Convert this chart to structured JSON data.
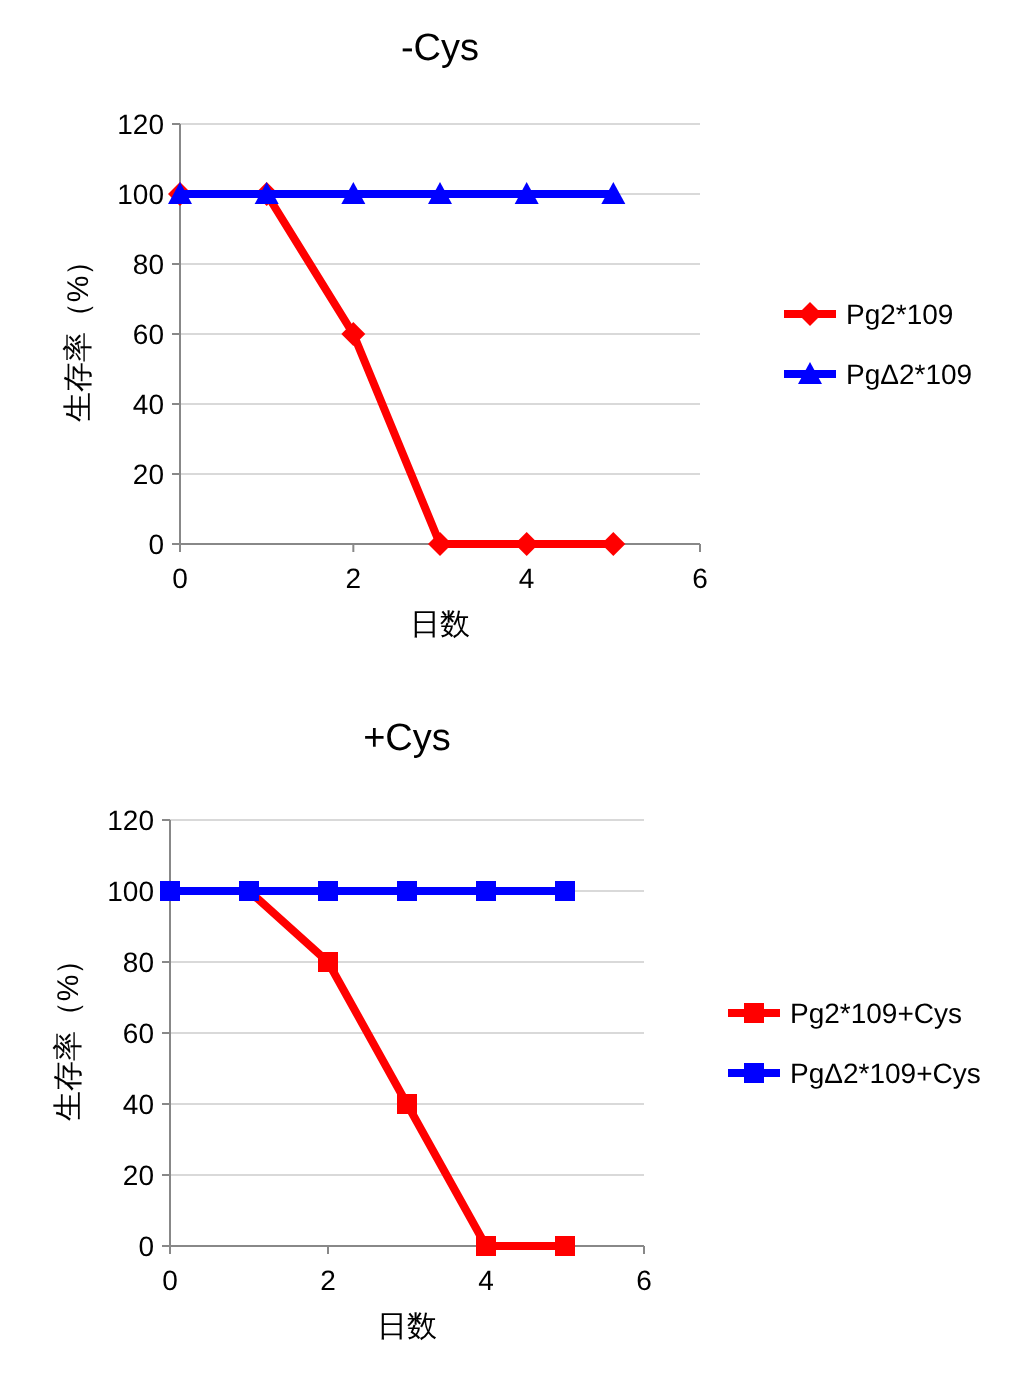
{
  "chart_data": [
    {
      "type": "line",
      "title": "-Cys",
      "xlabel": "日数",
      "ylabel": "生存率（%）",
      "xlim": [
        0,
        6
      ],
      "xticks": [
        0,
        2,
        4,
        6
      ],
      "ylim": [
        0,
        120
      ],
      "yticks": [
        0,
        20,
        40,
        60,
        80,
        100,
        120
      ],
      "grid": "y",
      "legend": "right",
      "x": [
        0,
        1,
        2,
        3,
        4,
        5
      ],
      "series": [
        {
          "name": "Pg2*109",
          "color": "#ff0000",
          "marker": "diamond",
          "values": [
            100,
            100,
            60,
            0,
            0,
            0
          ]
        },
        {
          "name": "PgΔ2*109",
          "color": "#0000ff",
          "marker": "triangle",
          "values": [
            100,
            100,
            100,
            100,
            100,
            100
          ]
        }
      ]
    },
    {
      "type": "line",
      "title": "+Cys",
      "xlabel": "日数",
      "ylabel": "生存率（%）",
      "xlim": [
        0,
        6
      ],
      "xticks": [
        0,
        2,
        4,
        6
      ],
      "ylim": [
        0,
        120
      ],
      "yticks": [
        0,
        20,
        40,
        60,
        80,
        100,
        120
      ],
      "grid": "y",
      "legend": "right",
      "x": [
        0,
        1,
        2,
        3,
        4,
        5
      ],
      "series": [
        {
          "name": "Pg2*109+Cys",
          "color": "#ff0000",
          "marker": "square",
          "values": [
            100,
            100,
            80,
            40,
            0,
            0
          ]
        },
        {
          "name": "PgΔ2*109+Cys",
          "color": "#0000ff",
          "marker": "square",
          "values": [
            100,
            100,
            100,
            100,
            100,
            100
          ]
        }
      ]
    }
  ]
}
